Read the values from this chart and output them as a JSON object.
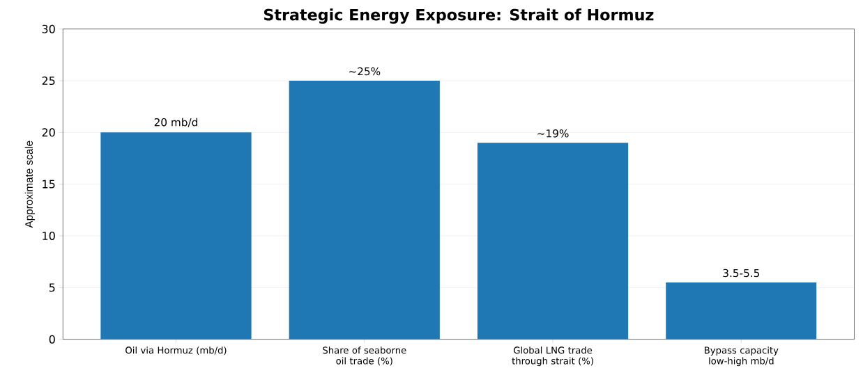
{
  "chart_data": {
    "type": "bar",
    "title": "Strategic Energy Exposure: Strait of Hormuz",
    "ylabel": "Approximate scale",
    "categories": [
      "Oil via Hormuz (mb/d)",
      "Share of seaborne oil trade (%)",
      "Global LNG trade through strait (%)",
      "Bypass capacity low-high mb/d"
    ],
    "values": [
      20,
      25,
      19,
      5.5
    ],
    "value_labels": [
      "20 mb/d",
      "~25%",
      "~19%",
      "3.5-5.5"
    ],
    "color": "#1f77b4",
    "ylim": [
      0,
      30
    ],
    "yticks": [
      0,
      5,
      10,
      15,
      20,
      25,
      30
    ],
    "grid": "y"
  }
}
